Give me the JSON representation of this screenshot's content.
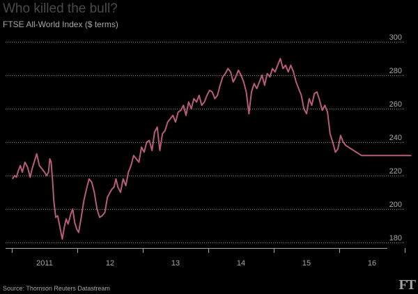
{
  "title": "Who killed the bull?",
  "subtitle": "FTSE All-World Index ($ terms)",
  "source": "Source: Thomson Reuters Datastream",
  "logo": "FT",
  "chart_data": {
    "type": "line",
    "title": "Who killed the bull?",
    "subtitle": "FTSE All-World Index ($ terms)",
    "xlabel": "",
    "ylabel": "",
    "ylim": [
      180,
      300
    ],
    "yticks": [
      180,
      200,
      220,
      240,
      260,
      280,
      300
    ],
    "ytick_labels": [
      "180",
      "200",
      "220",
      "240",
      "260",
      "280",
      "300"
    ],
    "xlim": [
      2010.0,
      2016.18
    ],
    "xticks": [
      2010.5,
      2011.5,
      2012.5,
      2013.5,
      2014.5,
      2015.5
    ],
    "xtick_labels": [
      "2011",
      "12",
      "13",
      "14",
      "15",
      "16"
    ],
    "grid": "horizontal dotted",
    "line_color": "#b85c7a",
    "series": [
      {
        "x": [
          2010.01,
          2010.04,
          2010.07,
          2010.1,
          2010.13,
          2010.16,
          2010.2,
          2010.24,
          2010.28,
          2010.31,
          2010.34,
          2010.38,
          2010.42,
          2010.46,
          2010.5,
          2010.53,
          2010.56,
          2010.58,
          2010.6,
          2010.62,
          2010.64,
          2010.67,
          2010.7,
          2010.73,
          2010.77,
          2010.8,
          2010.83,
          2010.86,
          2010.9,
          2010.93,
          2010.96,
          2010.99,
          2011.02,
          2011.06,
          2011.1,
          2011.14,
          2011.18,
          2011.22,
          2011.26,
          2011.3,
          2011.34,
          2011.38,
          2011.42,
          2011.46,
          2011.5,
          2011.53,
          2011.56,
          2011.59,
          2011.62,
          2011.66,
          2011.7,
          2011.74,
          2011.78,
          2011.82,
          2011.86,
          2011.9,
          2011.94,
          2011.98,
          2012.02,
          2012.06,
          2012.1,
          2012.14,
          2012.18,
          2012.22,
          2012.26,
          2012.3,
          2012.34,
          2012.38,
          2012.42,
          2012.46,
          2012.5,
          2012.54,
          2012.58,
          2012.62,
          2012.66,
          2012.7,
          2012.74,
          2012.78,
          2012.82,
          2012.86,
          2012.9,
          2012.94,
          2012.98,
          2013.02,
          2013.06,
          2013.1,
          2013.14,
          2013.18,
          2013.22,
          2013.26,
          2013.3,
          2013.34,
          2013.38,
          2013.42,
          2013.46,
          2013.5,
          2013.54,
          2013.58,
          2013.62,
          2013.66,
          2013.7,
          2013.74,
          2013.78,
          2013.82,
          2013.86,
          2013.9,
          2013.94,
          2013.98,
          2014.02,
          2014.06,
          2014.1,
          2014.14,
          2014.18,
          2014.22,
          2014.26,
          2014.3,
          2014.34,
          2014.38,
          2014.42,
          2014.46,
          2014.5,
          2014.54,
          2014.58,
          2014.62,
          2014.66,
          2014.7,
          2014.74,
          2014.78,
          2014.82,
          2014.86,
          2014.9,
          2014.94,
          2014.98,
          2015.02,
          2015.06,
          2015.1,
          2015.14,
          2015.18,
          2015.22,
          2015.26,
          2015.3,
          2015.34,
          2015.38,
          2015.42,
          2015.46,
          2015.5,
          2015.54,
          2015.58,
          2015.62,
          2015.66,
          2015.7,
          2015.74,
          2015.78,
          2015.82,
          2015.86,
          2015.9,
          2015.94,
          2015.98,
          2016.02,
          2016.06,
          2016.1
        ],
        "y": [
          218,
          220,
          219,
          223,
          226,
          222,
          228,
          225,
          219,
          224,
          228,
          233,
          226,
          224,
          222,
          220,
          222,
          230,
          228,
          218,
          205,
          195,
          196,
          190,
          182,
          189,
          194,
          191,
          197,
          200,
          192,
          188,
          186,
          195,
          205,
          212,
          218,
          216,
          210,
          200,
          195,
          196,
          198,
          207,
          210,
          212,
          213,
          218,
          213,
          210,
          218,
          214,
          222,
          226,
          232,
          230,
          228,
          237,
          234,
          240,
          241,
          235,
          246,
          249,
          235,
          245,
          247,
          252,
          254,
          256,
          252,
          258,
          259,
          262,
          256,
          264,
          260,
          266,
          264,
          268,
          262,
          264,
          268,
          271,
          270,
          266,
          268,
          274,
          279,
          281,
          284,
          282,
          276,
          279,
          283,
          280,
          276,
          270,
          257,
          270,
          275,
          272,
          276,
          280,
          274,
          281,
          279,
          284,
          282,
          286,
          290,
          284,
          286,
          282,
          286,
          282,
          276,
          272,
          268,
          260,
          257,
          266,
          262,
          269,
          270,
          265,
          259,
          262,
          258,
          245,
          240,
          234,
          236,
          244,
          240,
          238,
          237,
          236,
          235,
          234,
          233,
          232,
          232,
          232,
          232,
          232,
          232,
          232,
          232,
          232,
          232,
          232,
          232,
          232,
          232,
          232,
          232,
          232,
          232,
          232,
          232
        ]
      }
    ]
  }
}
